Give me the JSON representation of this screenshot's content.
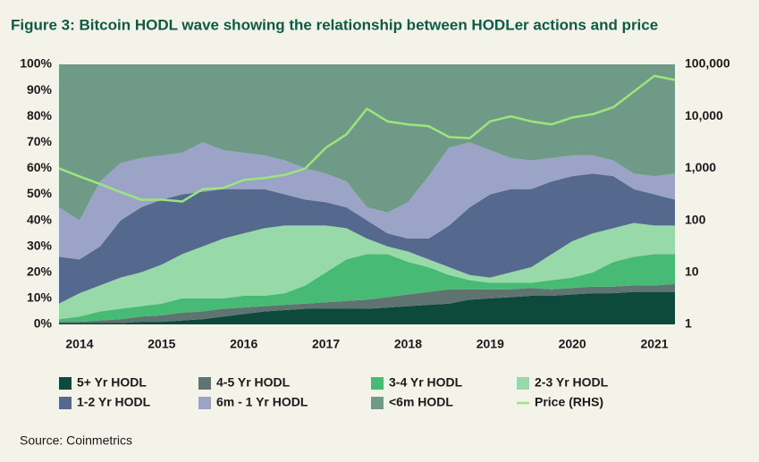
{
  "chart_data": {
    "type": "stacked_area",
    "title": "Figure 3: Bitcoin HODL wave showing the relationship between HODLer actions and price",
    "source": "Source: Coinmetrics",
    "x": [
      2013.75,
      2014,
      2014.25,
      2014.5,
      2014.75,
      2015,
      2015.25,
      2015.5,
      2015.75,
      2016,
      2016.25,
      2016.5,
      2016.75,
      2017,
      2017.25,
      2017.5,
      2017.75,
      2018,
      2018.25,
      2018.5,
      2018.75,
      2019,
      2019.25,
      2019.5,
      2019.75,
      2020,
      2020.25,
      2020.5,
      2020.75,
      2021,
      2021.25
    ],
    "xlim": [
      2013.75,
      2021.25
    ],
    "xticks": [
      2014,
      2015,
      2016,
      2017,
      2018,
      2019,
      2020,
      2021
    ],
    "ylim": [
      0,
      100
    ],
    "yticks": [
      {
        "value": 0,
        "label": "0%"
      },
      {
        "value": 10,
        "label": "10%"
      },
      {
        "value": 20,
        "label": "20%"
      },
      {
        "value": 30,
        "label": "30%"
      },
      {
        "value": 40,
        "label": "40%"
      },
      {
        "value": 50,
        "label": "50%"
      },
      {
        "value": 60,
        "label": "60%"
      },
      {
        "value": 70,
        "label": "70%"
      },
      {
        "value": 80,
        "label": "80%"
      },
      {
        "value": 90,
        "label": "90%"
      },
      {
        "value": 100,
        "label": "100%"
      }
    ],
    "y2lim": [
      1,
      100000
    ],
    "y2log": true,
    "y2ticks": [
      1,
      10,
      100,
      {
        "value": 1000,
        "label": "1,000"
      },
      {
        "value": 10000,
        "label": "10,000"
      },
      {
        "value": 100000,
        "label": "100,000"
      }
    ],
    "series": [
      {
        "name": "5+ Yr HODL",
        "color": "#0e4a3c",
        "values": [
          0.5,
          0.5,
          0.5,
          0.5,
          1,
          1,
          1.5,
          2,
          3,
          4,
          5,
          5.5,
          6,
          6,
          6,
          6,
          6.5,
          7,
          7.5,
          8,
          9.5,
          10,
          10.5,
          11,
          11,
          11.5,
          12,
          12,
          12.5,
          12.5,
          12.5
        ]
      },
      {
        "name": "4-5 Yr HODL",
        "color": "#5f7471",
        "values": [
          0.5,
          0.5,
          1,
          1.5,
          2,
          2.5,
          3,
          3,
          3,
          2.5,
          2,
          2,
          2,
          2.5,
          3,
          3.5,
          4,
          4.5,
          5,
          5.5,
          4,
          3.5,
          3,
          3,
          2.5,
          2.5,
          2.5,
          2.5,
          2.5,
          2.5,
          3
        ]
      },
      {
        "name": "3-4 Yr HODL",
        "color": "#47bb75",
        "values": [
          1,
          2,
          3.5,
          4,
          4,
          4.5,
          5.5,
          5,
          4,
          4.5,
          4,
          4.5,
          7,
          11.5,
          16,
          17.5,
          16.5,
          12.5,
          9.5,
          5.5,
          3.5,
          2.5,
          2.5,
          2,
          3.5,
          4,
          5.5,
          9.5,
          11,
          12,
          11.5
        ]
      },
      {
        "name": "2-3 Yr HODL",
        "color": "#97d9a8",
        "values": [
          6,
          9,
          10,
          12,
          13,
          15,
          17,
          20,
          23,
          24,
          26,
          26,
          23,
          18,
          12,
          6,
          3,
          4,
          3,
          3,
          2,
          2,
          4,
          6,
          10,
          14,
          15,
          13,
          13,
          11,
          11
        ]
      },
      {
        "name": "1-2 Yr HODL",
        "color": "#55698f",
        "values": [
          18,
          13,
          15,
          22,
          25,
          25,
          23,
          21,
          19,
          17,
          15,
          12,
          10,
          9,
          8,
          7,
          5,
          5,
          8,
          16,
          26,
          32,
          32,
          30,
          28,
          25,
          23,
          20,
          13,
          12,
          10
        ]
      },
      {
        "name": "6m - 1 Yr HODL",
        "color": "#9ba4c6",
        "values": [
          19,
          15,
          25,
          22,
          19,
          17,
          16,
          19,
          15,
          14,
          13,
          13,
          12,
          11,
          10,
          5,
          8,
          14,
          24,
          30,
          25,
          17,
          12,
          11,
          9,
          8,
          7,
          6,
          6,
          7,
          10
        ]
      },
      {
        "name": "<6m HODL",
        "color": "#6f9a88",
        "values": [
          55,
          60,
          45,
          38,
          36,
          35,
          34,
          30,
          33,
          34,
          35,
          37,
          40,
          42,
          45,
          55,
          57,
          53,
          43,
          32,
          30,
          33,
          36,
          37,
          36,
          35,
          35,
          37,
          42,
          43,
          42
        ]
      },
      {
        "name": "Price (RHS)",
        "color": "#9be57c",
        "axis": "y2",
        "values": [
          1000,
          700,
          500,
          350,
          250,
          250,
          230,
          400,
          420,
          600,
          650,
          750,
          1000,
          2500,
          4500,
          14000,
          8000,
          7000,
          6500,
          4000,
          3800,
          8000,
          10000,
          8000,
          7000,
          9500,
          11000,
          15000,
          30000,
          60000,
          50000
        ]
      }
    ]
  }
}
